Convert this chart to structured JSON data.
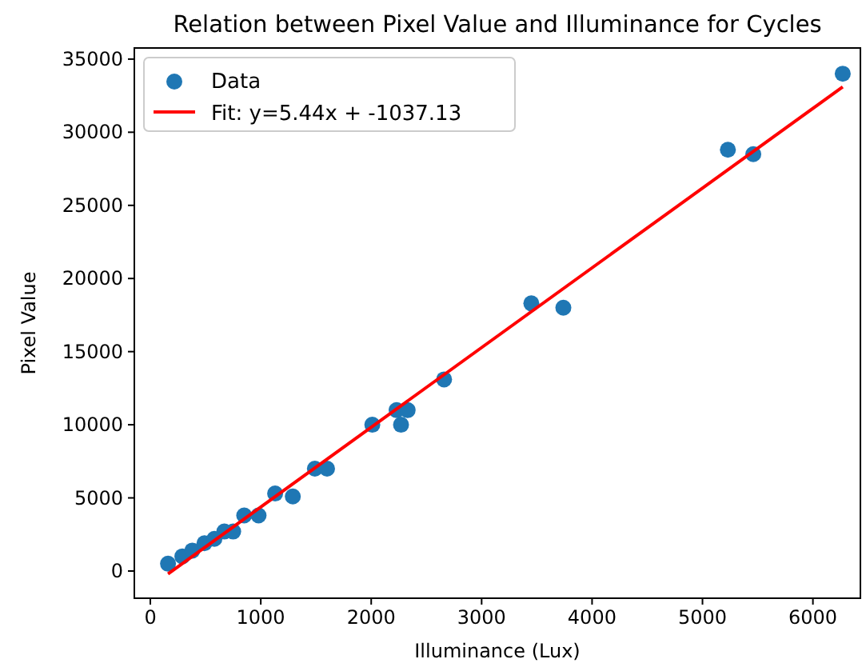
{
  "chart_data": {
    "type": "scatter",
    "title": "Relation between Pixel Value and Illuminance for Cycles",
    "xlabel": "Illuminance (Lux)",
    "ylabel": "Pixel Value",
    "xlim": [
      -145,
      6430
    ],
    "ylim": [
      -1860,
      35760
    ],
    "xticks": [
      0,
      1000,
      2000,
      3000,
      4000,
      5000,
      6000
    ],
    "yticks": [
      0,
      5000,
      10000,
      15000,
      20000,
      25000,
      30000,
      35000
    ],
    "legend": "top left",
    "grid": false,
    "series": [
      {
        "name": "Data",
        "marker": "circle",
        "color": "#1f77b4",
        "x": [
          160,
          290,
          380,
          490,
          580,
          670,
          750,
          850,
          980,
          1130,
          1290,
          1490,
          1600,
          2010,
          2230,
          2270,
          2330,
          2660,
          3450,
          3740,
          5230,
          5460,
          6270
        ],
        "values": [
          500,
          1000,
          1400,
          1900,
          2200,
          2700,
          2700,
          3800,
          3800,
          5300,
          5100,
          7000,
          7000,
          10000,
          11000,
          10000,
          11000,
          13100,
          18300,
          18000,
          28800,
          28500,
          34000
        ]
      },
      {
        "name": "Fit: y=5.44x + -1037.13",
        "type": "line",
        "color": "#ff0000",
        "x": [
          160,
          6270
        ],
        "values": [
          -200,
          33100
        ]
      }
    ]
  }
}
